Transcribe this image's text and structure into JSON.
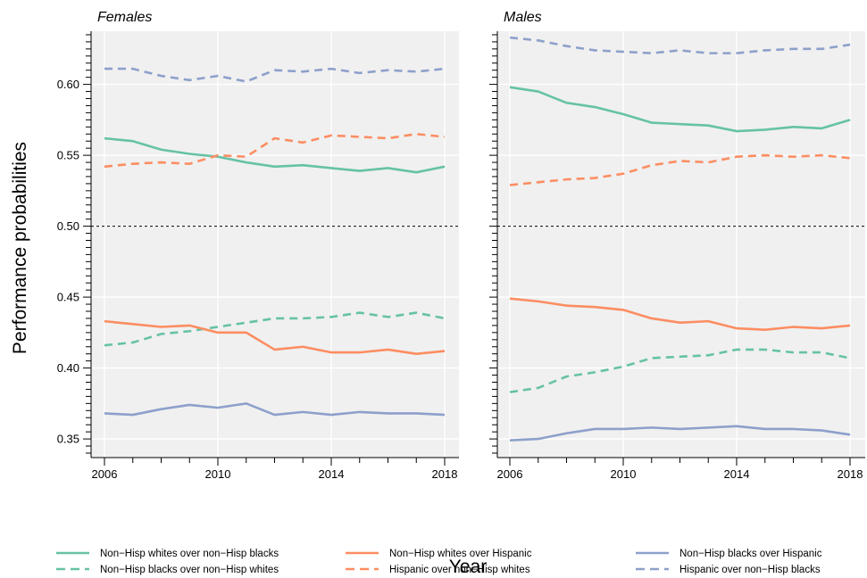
{
  "chart_data": {
    "type": "line",
    "xlabel": "Year",
    "ylabel": "Performance probabilities",
    "xlim": [
      2006,
      2018
    ],
    "ylim": [
      0.34,
      0.64
    ],
    "x_ticks": [
      2006,
      2010,
      2014,
      2018
    ],
    "y_ticks": [
      0.35,
      0.4,
      0.45,
      0.5,
      0.55,
      0.6
    ],
    "y_tick_labels": [
      "0.35",
      "0.40",
      "0.45",
      "0.50",
      "0.55",
      "0.60"
    ],
    "reference_line": 0.5,
    "grid": true,
    "legend_position": "bottom",
    "x": [
      2006,
      2007,
      2008,
      2009,
      2010,
      2011,
      2012,
      2013,
      2014,
      2015,
      2016,
      2017,
      2018
    ],
    "legend": [
      {
        "name": "Non−Hisp whites over non−Hisp blacks",
        "color": "#66c2a5",
        "dash": "solid"
      },
      {
        "name": "Non−Hisp blacks over non−Hisp whites",
        "color": "#66c2a5",
        "dash": "dashed"
      },
      {
        "name": "Non−Hisp whites over Hispanic",
        "color": "#fc8d62",
        "dash": "solid"
      },
      {
        "name": "Hispanic over non−Hisp whites",
        "color": "#fc8d62",
        "dash": "dashed"
      },
      {
        "name": "Non−Hisp blacks over Hispanic",
        "color": "#8da0cb",
        "dash": "solid"
      },
      {
        "name": "Hispanic over non−Hisp blacks",
        "color": "#8da0cb",
        "dash": "dashed"
      }
    ],
    "panels": [
      {
        "title": "Females",
        "series": [
          {
            "legend_index": 0,
            "values": [
              0.562,
              0.56,
              0.554,
              0.551,
              0.549,
              0.545,
              0.542,
              0.543,
              0.541,
              0.539,
              0.541,
              0.538,
              0.542
            ]
          },
          {
            "legend_index": 1,
            "values": [
              0.416,
              0.418,
              0.424,
              0.426,
              0.429,
              0.432,
              0.435,
              0.435,
              0.436,
              0.439,
              0.436,
              0.439,
              0.435
            ]
          },
          {
            "legend_index": 2,
            "values": [
              0.433,
              0.431,
              0.429,
              0.43,
              0.425,
              0.425,
              0.413,
              0.415,
              0.411,
              0.411,
              0.413,
              0.41,
              0.412
            ]
          },
          {
            "legend_index": 3,
            "values": [
              0.542,
              0.544,
              0.545,
              0.544,
              0.55,
              0.549,
              0.562,
              0.559,
              0.564,
              0.563,
              0.562,
              0.565,
              0.563
            ]
          },
          {
            "legend_index": 4,
            "values": [
              0.368,
              0.367,
              0.371,
              0.374,
              0.372,
              0.375,
              0.367,
              0.369,
              0.367,
              0.369,
              0.368,
              0.368,
              0.367
            ]
          },
          {
            "legend_index": 5,
            "values": [
              0.611,
              0.611,
              0.606,
              0.603,
              0.606,
              0.602,
              0.61,
              0.609,
              0.611,
              0.608,
              0.61,
              0.609,
              0.611
            ]
          }
        ]
      },
      {
        "title": "Males",
        "series": [
          {
            "legend_index": 0,
            "values": [
              0.598,
              0.595,
              0.587,
              0.584,
              0.579,
              0.573,
              0.572,
              0.571,
              0.567,
              0.568,
              0.57,
              0.569,
              0.575
            ]
          },
          {
            "legend_index": 1,
            "values": [
              0.383,
              0.386,
              0.394,
              0.397,
              0.401,
              0.407,
              0.408,
              0.409,
              0.413,
              0.413,
              0.411,
              0.411,
              0.407
            ]
          },
          {
            "legend_index": 2,
            "values": [
              0.449,
              0.447,
              0.444,
              0.443,
              0.441,
              0.435,
              0.432,
              0.433,
              0.428,
              0.427,
              0.429,
              0.428,
              0.43
            ]
          },
          {
            "legend_index": 3,
            "values": [
              0.529,
              0.531,
              0.533,
              0.534,
              0.537,
              0.543,
              0.546,
              0.545,
              0.549,
              0.55,
              0.549,
              0.55,
              0.548
            ]
          },
          {
            "legend_index": 4,
            "values": [
              0.349,
              0.35,
              0.354,
              0.357,
              0.357,
              0.358,
              0.357,
              0.358,
              0.359,
              0.357,
              0.357,
              0.356,
              0.353
            ]
          },
          {
            "legend_index": 5,
            "values": [
              0.633,
              0.631,
              0.627,
              0.624,
              0.623,
              0.622,
              0.624,
              0.622,
              0.622,
              0.624,
              0.625,
              0.625,
              0.628
            ]
          }
        ]
      }
    ]
  }
}
